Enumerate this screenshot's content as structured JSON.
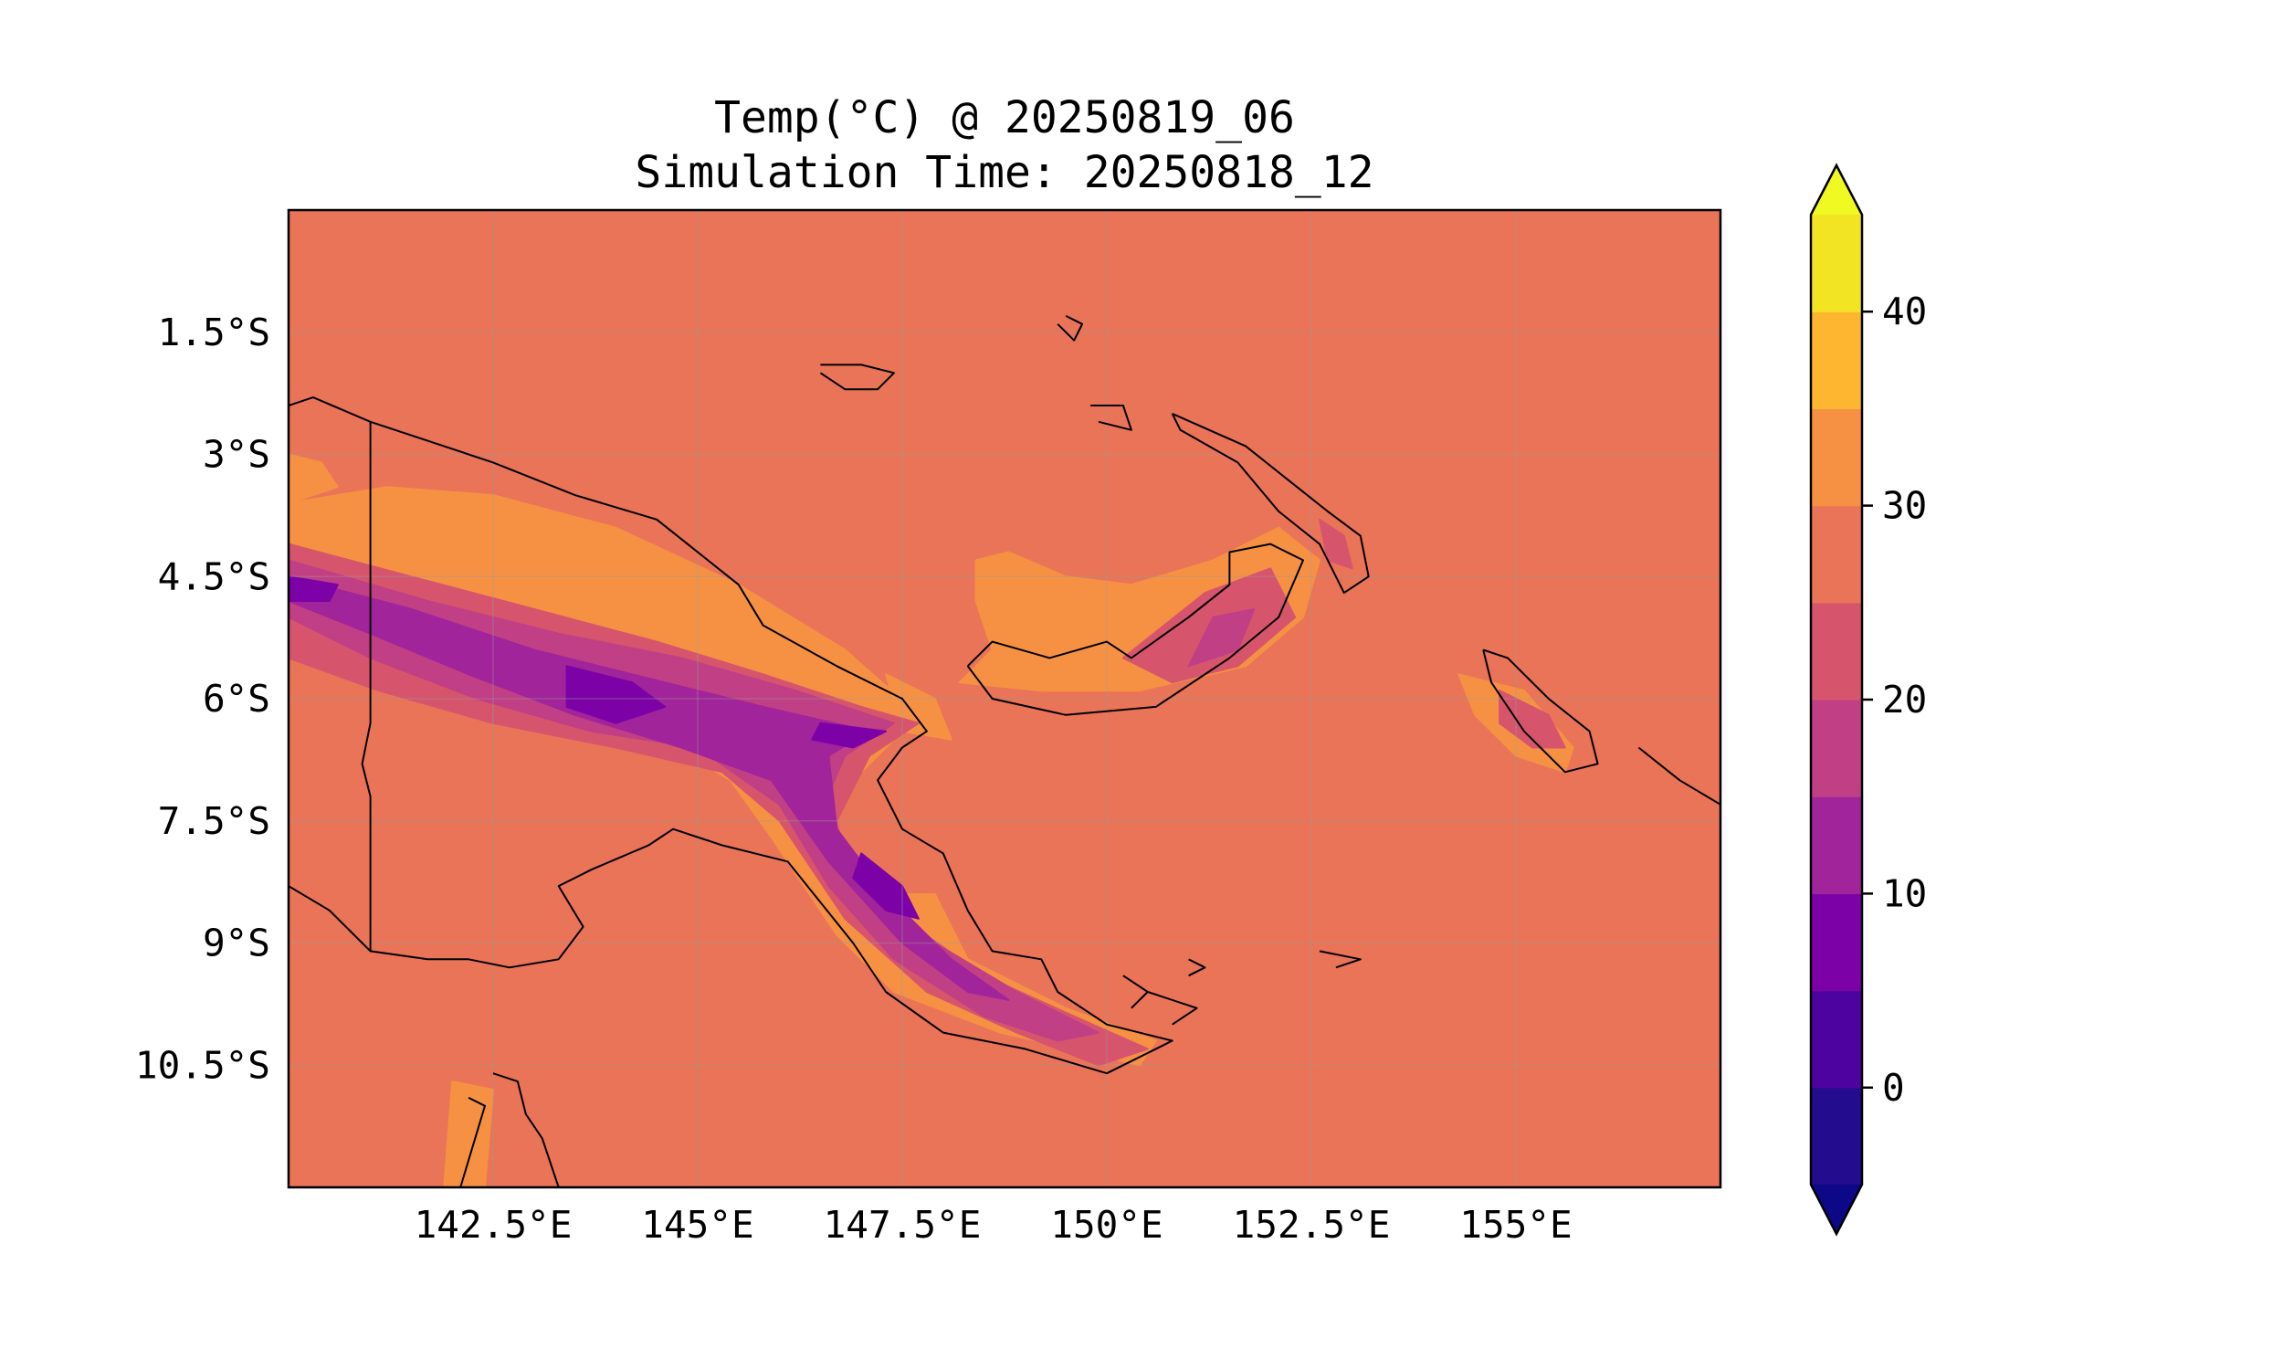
{
  "title": "Temp(°C) @ 20250819_06",
  "subtitle": "Simulation Time: 20250818_12",
  "map": {
    "projection": "PlateCarree",
    "extent": {
      "lon_min": 140.0,
      "lon_max": 157.5,
      "lat_min": -12.0,
      "lat_max": 0.0
    },
    "gridlines": true,
    "coastlines": true,
    "fill_color": "#e97457",
    "x_ticks": [
      {
        "value": 142.5,
        "label": "142.5°E"
      },
      {
        "value": 145.0,
        "label": "145°E"
      },
      {
        "value": 147.5,
        "label": "147.5°E"
      },
      {
        "value": 150.0,
        "label": "150°E"
      },
      {
        "value": 152.5,
        "label": "152.5°E"
      },
      {
        "value": 155.0,
        "label": "155°E"
      }
    ],
    "y_ticks": [
      {
        "value": -1.5,
        "label": "1.5°S"
      },
      {
        "value": -3.0,
        "label": "3°S"
      },
      {
        "value": -4.5,
        "label": "4.5°S"
      },
      {
        "value": -6.0,
        "label": "6°S"
      },
      {
        "value": -7.5,
        "label": "7.5°S"
      },
      {
        "value": -9.0,
        "label": "9°S"
      },
      {
        "value": -10.5,
        "label": "10.5°S"
      }
    ]
  },
  "colorbar": {
    "colormap": "plasma",
    "extend": "both",
    "min_value": -5,
    "max_value": 45,
    "levels": [
      -5,
      0,
      5,
      10,
      15,
      20,
      25,
      30,
      35,
      40,
      45
    ],
    "colors": [
      "#230c8d",
      "#4d03a0",
      "#7c02a7",
      "#a2249a",
      "#c13f84",
      "#d6556d",
      "#e97457",
      "#f69144",
      "#feb630",
      "#f2e423"
    ],
    "under_color": "#0d0887",
    "over_color": "#f0f921",
    "ticks": [
      {
        "value": 0,
        "label": "0"
      },
      {
        "value": 10,
        "label": "10"
      },
      {
        "value": 20,
        "label": "20"
      },
      {
        "value": 30,
        "label": "30"
      },
      {
        "value": 40,
        "label": "40"
      }
    ]
  },
  "temperature_regions": [
    {
      "band": "30-35",
      "color": "#f69144",
      "polygon": [
        [
          140.0,
          -3.6
        ],
        [
          141.2,
          -3.4
        ],
        [
          142.5,
          -3.5
        ],
        [
          144.0,
          -3.9
        ],
        [
          145.5,
          -4.6
        ],
        [
          146.8,
          -5.4
        ],
        [
          147.7,
          -6.2
        ],
        [
          147.2,
          -6.7
        ],
        [
          146.6,
          -7.3
        ],
        [
          146.5,
          -8.1
        ],
        [
          147.3,
          -8.4
        ],
        [
          147.9,
          -8.4
        ],
        [
          148.3,
          -9.2
        ],
        [
          149.5,
          -9.8
        ],
        [
          150.6,
          -10.2
        ],
        [
          150.4,
          -10.5
        ],
        [
          149.6,
          -10.3
        ],
        [
          148.7,
          -10.1
        ],
        [
          147.4,
          -9.6
        ],
        [
          146.7,
          -8.9
        ],
        [
          145.9,
          -7.7
        ],
        [
          145.4,
          -7.0
        ],
        [
          144.4,
          -6.4
        ],
        [
          143.3,
          -5.8
        ],
        [
          142.2,
          -5.5
        ],
        [
          141.1,
          -5.3
        ],
        [
          140.0,
          -5.2
        ]
      ]
    },
    {
      "band": "30-35",
      "color": "#f69144",
      "polygon": [
        [
          140.0,
          -3.0
        ],
        [
          140.4,
          -3.1
        ],
        [
          140.6,
          -3.4
        ],
        [
          140.0,
          -3.6
        ]
      ]
    },
    {
      "band": "30-35",
      "color": "#f69144",
      "polygon": [
        [
          148.4,
          -4.3
        ],
        [
          148.8,
          -4.2
        ],
        [
          149.5,
          -4.5
        ],
        [
          150.3,
          -4.6
        ],
        [
          151.3,
          -4.3
        ],
        [
          152.1,
          -3.9
        ],
        [
          152.6,
          -4.3
        ],
        [
          152.4,
          -5.0
        ],
        [
          151.7,
          -5.6
        ],
        [
          150.4,
          -5.9
        ],
        [
          149.2,
          -5.9
        ],
        [
          148.2,
          -5.8
        ],
        [
          148.6,
          -5.4
        ],
        [
          148.4,
          -4.8
        ]
      ]
    },
    {
      "band": "30-35",
      "color": "#f69144",
      "polygon": [
        [
          154.3,
          -5.7
        ],
        [
          155.1,
          -5.9
        ],
        [
          155.7,
          -6.6
        ],
        [
          155.6,
          -6.9
        ],
        [
          155.0,
          -6.7
        ],
        [
          154.5,
          -6.2
        ]
      ]
    },
    {
      "band": "30-35",
      "color": "#f69144",
      "polygon": [
        [
          142.0,
          -10.7
        ],
        [
          142.5,
          -10.8
        ],
        [
          142.4,
          -12.0
        ],
        [
          141.9,
          -12.0
        ]
      ]
    },
    {
      "band": "30-35",
      "color": "#f69144",
      "polygon": [
        [
          147.3,
          -5.7
        ],
        [
          147.9,
          -6.0
        ],
        [
          148.1,
          -6.5
        ],
        [
          147.5,
          -6.4
        ]
      ]
    },
    {
      "band": "20-25",
      "color": "#d6556d",
      "polygon": [
        [
          140.0,
          -4.1
        ],
        [
          141.5,
          -4.5
        ],
        [
          143.0,
          -4.9
        ],
        [
          144.5,
          -5.3
        ],
        [
          145.8,
          -5.7
        ],
        [
          147.0,
          -6.1
        ],
        [
          147.7,
          -6.3
        ],
        [
          147.1,
          -6.7
        ],
        [
          146.7,
          -7.5
        ],
        [
          146.8,
          -8.0
        ],
        [
          147.5,
          -8.7
        ],
        [
          148.5,
          -9.4
        ],
        [
          149.6,
          -9.9
        ],
        [
          150.5,
          -10.3
        ],
        [
          149.9,
          -10.5
        ],
        [
          148.9,
          -10.1
        ],
        [
          147.8,
          -9.6
        ],
        [
          146.8,
          -8.7
        ],
        [
          146.0,
          -7.5
        ],
        [
          145.3,
          -6.9
        ],
        [
          144.0,
          -6.6
        ],
        [
          142.5,
          -6.3
        ],
        [
          141.1,
          -5.9
        ],
        [
          140.0,
          -5.5
        ]
      ]
    },
    {
      "band": "20-25",
      "color": "#d6556d",
      "polygon": [
        [
          151.2,
          -4.7
        ],
        [
          152.0,
          -4.4
        ],
        [
          152.3,
          -5.0
        ],
        [
          151.6,
          -5.6
        ],
        [
          150.8,
          -5.8
        ],
        [
          150.2,
          -5.5
        ]
      ]
    },
    {
      "band": "20-25",
      "color": "#d6556d",
      "polygon": [
        [
          154.8,
          -5.9
        ],
        [
          155.4,
          -6.2
        ],
        [
          155.6,
          -6.6
        ],
        [
          155.2,
          -6.6
        ],
        [
          154.8,
          -6.3
        ]
      ]
    },
    {
      "band": "20-25",
      "color": "#d6556d",
      "polygon": [
        [
          152.6,
          -3.8
        ],
        [
          152.9,
          -4.0
        ],
        [
          153.0,
          -4.4
        ],
        [
          152.7,
          -4.3
        ]
      ]
    },
    {
      "band": "15-20",
      "color": "#c13f84",
      "polygon": [
        [
          140.0,
          -4.3
        ],
        [
          141.7,
          -4.8
        ],
        [
          143.3,
          -5.2
        ],
        [
          144.8,
          -5.5
        ],
        [
          146.2,
          -5.9
        ],
        [
          147.4,
          -6.3
        ],
        [
          146.8,
          -6.7
        ],
        [
          146.5,
          -7.4
        ],
        [
          147.0,
          -8.2
        ],
        [
          147.9,
          -9.0
        ],
        [
          148.9,
          -9.6
        ],
        [
          149.9,
          -10.1
        ],
        [
          149.4,
          -10.2
        ],
        [
          148.5,
          -9.9
        ],
        [
          147.4,
          -9.2
        ],
        [
          146.6,
          -8.3
        ],
        [
          146.0,
          -7.3
        ],
        [
          145.0,
          -6.6
        ],
        [
          143.7,
          -6.4
        ],
        [
          142.3,
          -6.0
        ],
        [
          141.0,
          -5.5
        ],
        [
          140.0,
          -5.0
        ]
      ]
    },
    {
      "band": "15-20",
      "color": "#c13f84",
      "polygon": [
        [
          151.3,
          -5.0
        ],
        [
          151.8,
          -4.9
        ],
        [
          151.6,
          -5.4
        ],
        [
          151.0,
          -5.6
        ]
      ]
    },
    {
      "band": "10-15",
      "color": "#a2249a",
      "polygon": [
        [
          140.0,
          -4.5
        ],
        [
          141.5,
          -4.9
        ],
        [
          143.0,
          -5.4
        ],
        [
          144.6,
          -5.8
        ],
        [
          145.8,
          -6.1
        ],
        [
          147.1,
          -6.4
        ],
        [
          146.6,
          -6.7
        ],
        [
          146.7,
          -7.6
        ],
        [
          147.3,
          -8.4
        ],
        [
          148.1,
          -9.2
        ],
        [
          148.8,
          -9.7
        ],
        [
          148.3,
          -9.6
        ],
        [
          147.5,
          -9.0
        ],
        [
          146.6,
          -8.0
        ],
        [
          145.9,
          -7.0
        ],
        [
          144.8,
          -6.6
        ],
        [
          143.5,
          -6.2
        ],
        [
          142.2,
          -5.7
        ],
        [
          141.0,
          -5.2
        ],
        [
          140.0,
          -4.8
        ]
      ]
    },
    {
      "band": "5-10",
      "color": "#7c02a7",
      "polygon": [
        [
          143.4,
          -5.6
        ],
        [
          144.2,
          -5.8
        ],
        [
          144.6,
          -6.1
        ],
        [
          144.0,
          -6.3
        ],
        [
          143.4,
          -6.1
        ]
      ]
    },
    {
      "band": "5-10",
      "color": "#7c02a7",
      "polygon": [
        [
          146.5,
          -6.3
        ],
        [
          147.3,
          -6.4
        ],
        [
          146.9,
          -6.6
        ],
        [
          146.4,
          -6.5
        ]
      ]
    },
    {
      "band": "5-10",
      "color": "#7c02a7",
      "polygon": [
        [
          147.0,
          -7.9
        ],
        [
          147.5,
          -8.3
        ],
        [
          147.7,
          -8.7
        ],
        [
          147.3,
          -8.6
        ],
        [
          146.9,
          -8.2
        ]
      ]
    },
    {
      "band": "5-10",
      "color": "#7c02a7",
      "polygon": [
        [
          140.0,
          -4.5
        ],
        [
          140.6,
          -4.6
        ],
        [
          140.5,
          -4.8
        ],
        [
          140.0,
          -4.8
        ]
      ]
    }
  ],
  "coastlines": [
    [
      [
        141.0,
        -2.6
      ],
      [
        142.5,
        -3.1
      ],
      [
        143.5,
        -3.5
      ],
      [
        144.5,
        -3.8
      ],
      [
        145.5,
        -4.6
      ],
      [
        145.8,
        -5.1
      ],
      [
        146.7,
        -5.6
      ],
      [
        147.5,
        -6.0
      ],
      [
        147.8,
        -6.4
      ],
      [
        147.5,
        -6.6
      ],
      [
        147.2,
        -7.0
      ],
      [
        147.5,
        -7.6
      ],
      [
        148.0,
        -7.9
      ],
      [
        148.3,
        -8.6
      ],
      [
        148.6,
        -9.1
      ],
      [
        149.2,
        -9.2
      ],
      [
        149.4,
        -9.6
      ],
      [
        150.0,
        -10.0
      ],
      [
        150.8,
        -10.2
      ],
      [
        150.0,
        -10.6
      ],
      [
        149.0,
        -10.3
      ],
      [
        148.0,
        -10.1
      ],
      [
        147.3,
        -9.6
      ],
      [
        146.9,
        -9.0
      ],
      [
        146.5,
        -8.5
      ],
      [
        146.1,
        -8.0
      ],
      [
        145.3,
        -7.8
      ],
      [
        144.7,
        -7.6
      ],
      [
        144.4,
        -7.8
      ],
      [
        143.7,
        -8.1
      ],
      [
        143.3,
        -8.3
      ],
      [
        143.6,
        -8.8
      ],
      [
        143.3,
        -9.2
      ],
      [
        142.7,
        -9.3
      ],
      [
        142.2,
        -9.2
      ],
      [
        141.7,
        -9.2
      ],
      [
        141.0,
        -9.1
      ],
      [
        140.5,
        -8.6
      ],
      [
        140.0,
        -8.3
      ]
    ],
    [
      [
        140.0,
        -2.4
      ],
      [
        140.3,
        -2.3
      ],
      [
        141.0,
        -2.6
      ]
    ],
    [
      [
        148.3,
        -5.6
      ],
      [
        148.6,
        -5.3
      ],
      [
        149.3,
        -5.5
      ],
      [
        150.0,
        -5.3
      ],
      [
        150.3,
        -5.5
      ],
      [
        151.0,
        -5.0
      ],
      [
        151.5,
        -4.6
      ],
      [
        151.5,
        -4.2
      ],
      [
        152.0,
        -4.1
      ],
      [
        152.4,
        -4.3
      ],
      [
        152.1,
        -5.0
      ],
      [
        151.5,
        -5.5
      ],
      [
        150.6,
        -6.1
      ],
      [
        149.5,
        -6.2
      ],
      [
        148.6,
        -6.0
      ],
      [
        148.3,
        -5.6
      ]
    ],
    [
      [
        150.8,
        -2.5
      ],
      [
        151.7,
        -2.9
      ],
      [
        152.2,
        -3.3
      ],
      [
        152.7,
        -3.7
      ],
      [
        153.1,
        -4.0
      ],
      [
        153.2,
        -4.5
      ],
      [
        152.9,
        -4.7
      ],
      [
        152.6,
        -4.1
      ],
      [
        152.1,
        -3.7
      ],
      [
        151.6,
        -3.1
      ],
      [
        150.9,
        -2.7
      ],
      [
        150.8,
        -2.5
      ]
    ],
    [
      [
        154.6,
        -5.4
      ],
      [
        154.9,
        -5.5
      ],
      [
        155.4,
        -6.0
      ],
      [
        155.9,
        -6.4
      ],
      [
        156.0,
        -6.8
      ],
      [
        155.6,
        -6.9
      ],
      [
        155.1,
        -6.4
      ],
      [
        154.7,
        -5.8
      ],
      [
        154.6,
        -5.4
      ]
    ],
    [
      [
        146.5,
        -1.9
      ],
      [
        147.0,
        -1.9
      ],
      [
        147.4,
        -2.0
      ],
      [
        147.2,
        -2.2
      ],
      [
        146.8,
        -2.2
      ],
      [
        146.5,
        -2.0
      ]
    ],
    [
      [
        149.8,
        -2.4
      ],
      [
        150.2,
        -2.4
      ],
      [
        150.3,
        -2.7
      ],
      [
        149.9,
        -2.6
      ]
    ],
    [
      [
        149.5,
        -1.3
      ],
      [
        149.7,
        -1.4
      ],
      [
        149.6,
        -1.6
      ],
      [
        149.4,
        -1.4
      ]
    ],
    [
      [
        142.5,
        -10.6
      ],
      [
        142.8,
        -10.7
      ],
      [
        142.9,
        -11.1
      ],
      [
        143.1,
        -11.4
      ],
      [
        143.3,
        -12.0
      ]
    ],
    [
      [
        142.2,
        -10.9
      ],
      [
        142.4,
        -11.0
      ],
      [
        142.1,
        -12.0
      ]
    ],
    [
      [
        156.5,
        -6.6
      ],
      [
        157.0,
        -7.0
      ],
      [
        157.5,
        -7.3
      ]
    ],
    [
      [
        151.0,
        -9.2
      ],
      [
        151.2,
        -9.3
      ],
      [
        151.0,
        -9.4
      ]
    ],
    [
      [
        150.2,
        -9.4
      ],
      [
        150.5,
        -9.6
      ],
      [
        150.3,
        -9.8
      ]
    ],
    [
      [
        150.5,
        -9.6
      ],
      [
        151.1,
        -9.8
      ],
      [
        150.8,
        -10.0
      ]
    ],
    [
      [
        152.6,
        -9.1
      ],
      [
        153.1,
        -9.2
      ],
      [
        152.8,
        -9.3
      ]
    ]
  ],
  "border_line": [
    [
      141.0,
      -2.6
    ],
    [
      141.0,
      -6.3
    ],
    [
      140.9,
      -6.8
    ],
    [
      141.0,
      -7.2
    ],
    [
      141.0,
      -9.1
    ]
  ]
}
